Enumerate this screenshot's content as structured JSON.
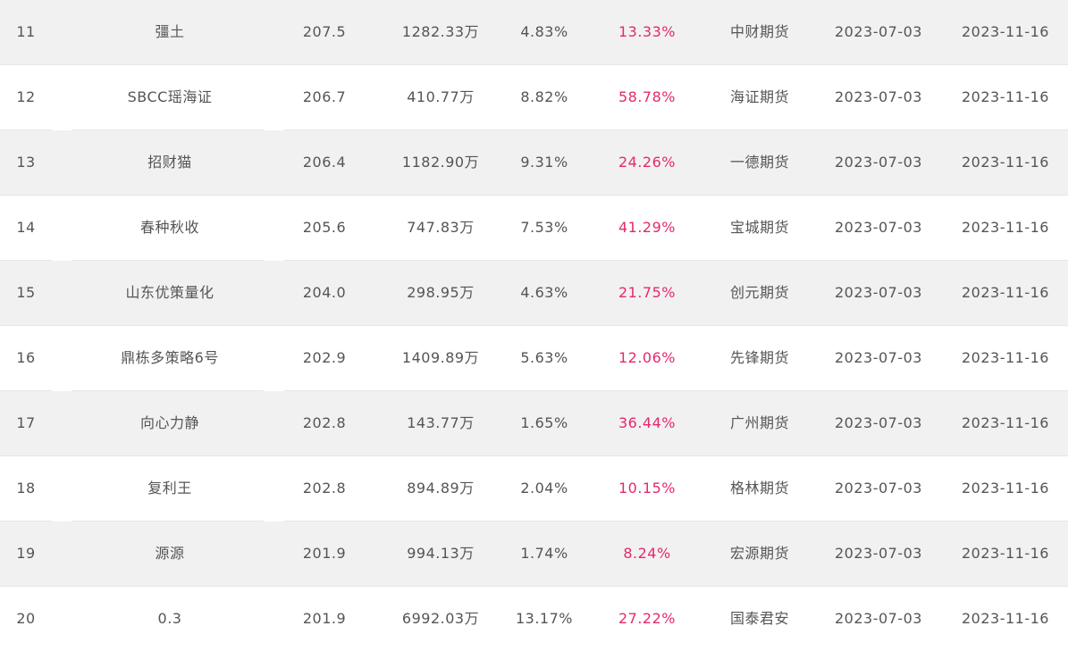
{
  "colors": {
    "text": "#555555",
    "accent": "#e5286f",
    "row_alt": "#f1f1f1",
    "row_plain": "#ffffff"
  },
  "rows": [
    {
      "rank": "11",
      "name": "彊土",
      "score": "207.5",
      "equity": "1282.33万",
      "return": "4.83%",
      "drawdown": "13.33%",
      "broker": "中财期货",
      "start": "2023-07-03",
      "end": "2023-11-16"
    },
    {
      "rank": "12",
      "name": "SBCC瑶海证",
      "score": "206.7",
      "equity": "410.77万",
      "return": "8.82%",
      "drawdown": "58.78%",
      "broker": "海证期货",
      "start": "2023-07-03",
      "end": "2023-11-16"
    },
    {
      "rank": "13",
      "name": "招财猫",
      "score": "206.4",
      "equity": "1182.90万",
      "return": "9.31%",
      "drawdown": "24.26%",
      "broker": "一德期货",
      "start": "2023-07-03",
      "end": "2023-11-16"
    },
    {
      "rank": "14",
      "name": "春种秋收",
      "score": "205.6",
      "equity": "747.83万",
      "return": "7.53%",
      "drawdown": "41.29%",
      "broker": "宝城期货",
      "start": "2023-07-03",
      "end": "2023-11-16"
    },
    {
      "rank": "15",
      "name": "山东优策量化",
      "score": "204.0",
      "equity": "298.95万",
      "return": "4.63%",
      "drawdown": "21.75%",
      "broker": "创元期货",
      "start": "2023-07-03",
      "end": "2023-11-16"
    },
    {
      "rank": "16",
      "name": "鼎栋多策略6号",
      "score": "202.9",
      "equity": "1409.89万",
      "return": "5.63%",
      "drawdown": "12.06%",
      "broker": "先锋期货",
      "start": "2023-07-03",
      "end": "2023-11-16"
    },
    {
      "rank": "17",
      "name": "向心力静",
      "score": "202.8",
      "equity": "143.77万",
      "return": "1.65%",
      "drawdown": "36.44%",
      "broker": "广州期货",
      "start": "2023-07-03",
      "end": "2023-11-16"
    },
    {
      "rank": "18",
      "name": "复利王",
      "score": "202.8",
      "equity": "894.89万",
      "return": "2.04%",
      "drawdown": "10.15%",
      "broker": "格林期货",
      "start": "2023-07-03",
      "end": "2023-11-16"
    },
    {
      "rank": "19",
      "name": "源源",
      "score": "201.9",
      "equity": "994.13万",
      "return": "1.74%",
      "drawdown": "8.24%",
      "broker": "宏源期货",
      "start": "2023-07-03",
      "end": "2023-11-16"
    },
    {
      "rank": "20",
      "name": "0.3",
      "score": "201.9",
      "equity": "6992.03万",
      "return": "13.17%",
      "drawdown": "27.22%",
      "broker": "国泰君安",
      "start": "2023-07-03",
      "end": "2023-11-16"
    }
  ]
}
